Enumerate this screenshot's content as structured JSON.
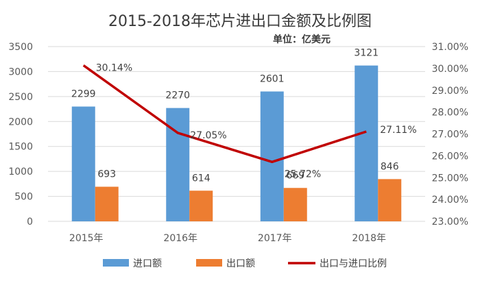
{
  "chart_data": {
    "type": "bar",
    "title": "2015-2018年芯片进出口金额及比例图",
    "subtitle": "单位：亿美元",
    "categories": [
      "2015年",
      "2016年",
      "2017年",
      "2018年"
    ],
    "series": [
      {
        "name": "进口额",
        "type": "bar",
        "axis": "left",
        "color": "#5b9bd5",
        "values": [
          2299,
          2270,
          2601,
          3121
        ],
        "labels": [
          "2299",
          "2270",
          "2601",
          "3121"
        ]
      },
      {
        "name": "出口额",
        "type": "bar",
        "axis": "left",
        "color": "#ed7d31",
        "values": [
          693,
          614,
          669,
          846
        ],
        "labels": [
          "693",
          "614",
          "669",
          "846"
        ]
      },
      {
        "name": "出口与进口比例",
        "type": "line",
        "axis": "right",
        "color": "#c00000",
        "values": [
          30.14,
          27.05,
          25.72,
          27.11
        ],
        "labels": [
          "30.14%",
          "27.05%",
          "25.72%",
          "27.11%"
        ]
      }
    ],
    "left_axis": {
      "ylim": [
        0,
        3500
      ],
      "ticks": [
        "0",
        "500",
        "1000",
        "1500",
        "2000",
        "2500",
        "3000",
        "3500"
      ]
    },
    "right_axis": {
      "ylim": [
        23,
        31
      ],
      "ticks": [
        "23.00%",
        "24.00%",
        "25.00%",
        "26.00%",
        "27.00%",
        "28.00%",
        "29.00%",
        "30.00%",
        "31.00%"
      ]
    },
    "grid": true,
    "legend_position": "bottom"
  }
}
